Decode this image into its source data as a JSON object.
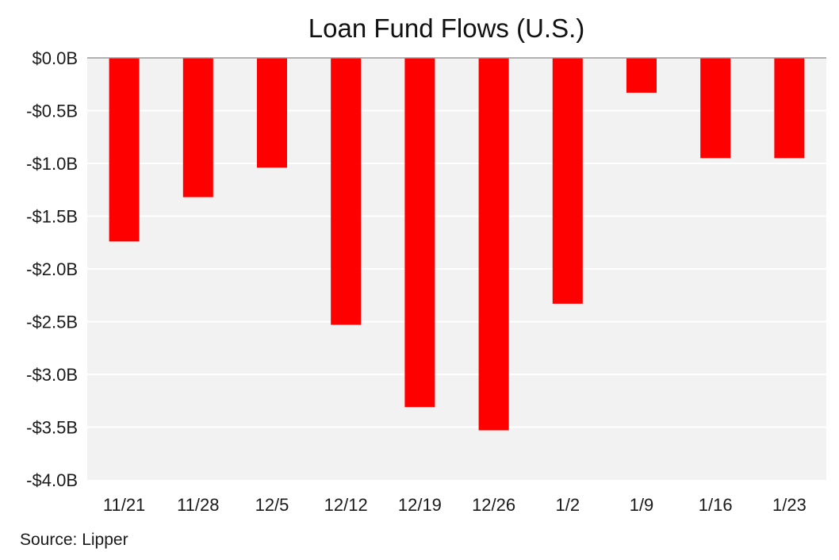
{
  "chart_data": {
    "type": "bar",
    "title": "Loan Fund Flows (U.S.)",
    "xlabel": "",
    "ylabel": "",
    "categories": [
      "11/21",
      "11/28",
      "12/5",
      "12/12",
      "12/19",
      "12/26",
      "1/2",
      "1/9",
      "1/16",
      "1/23"
    ],
    "values": [
      -1.74,
      -1.32,
      -1.04,
      -2.53,
      -3.31,
      -3.53,
      -2.33,
      -0.33,
      -0.95,
      -0.95
    ],
    "ylim": [
      -4.0,
      0.0
    ],
    "yticks": [
      0.0,
      -0.5,
      -1.0,
      -1.5,
      -2.0,
      -2.5,
      -3.0,
      -3.5,
      -4.0
    ],
    "ytick_labels": [
      "$0.0B",
      "-$0.5B",
      "-$1.0B",
      "-$1.5B",
      "-$2.0B",
      "-$2.5B",
      "-$3.0B",
      "-$3.5B",
      "-$4.0B"
    ],
    "grid": true,
    "bar_color": "#ff0000",
    "plot_background": "#f2f2f2",
    "grid_color": "#ffffff",
    "legend": "none"
  },
  "source": "Source: Lipper"
}
